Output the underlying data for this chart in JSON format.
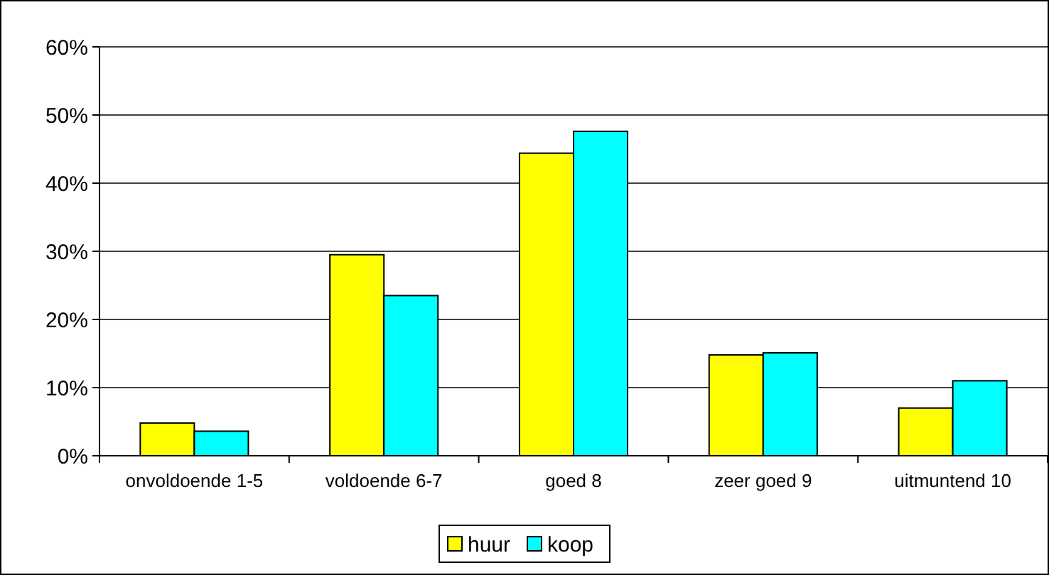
{
  "chart_data": {
    "type": "bar",
    "categories": [
      "onvoldoende 1-5",
      "voldoende 6-7",
      "goed 8",
      "zeer goed 9",
      "uitmuntend 10"
    ],
    "series": [
      {
        "name": "huur",
        "color": "#ffff00",
        "values": [
          4.8,
          29.5,
          44.4,
          14.8,
          7.0
        ]
      },
      {
        "name": "koop",
        "color": "#00ffff",
        "values": [
          3.6,
          23.5,
          47.6,
          15.1,
          11.0
        ]
      }
    ],
    "ylim": [
      0,
      60
    ],
    "yticks": [
      {
        "value": 0,
        "label": "0%"
      },
      {
        "value": 10,
        "label": "10%"
      },
      {
        "value": 20,
        "label": "20%"
      },
      {
        "value": 30,
        "label": "30%"
      },
      {
        "value": 40,
        "label": "40%"
      },
      {
        "value": 50,
        "label": "50%"
      },
      {
        "value": 60,
        "label": "60%"
      }
    ],
    "grid": "y",
    "legend": "bottom"
  }
}
